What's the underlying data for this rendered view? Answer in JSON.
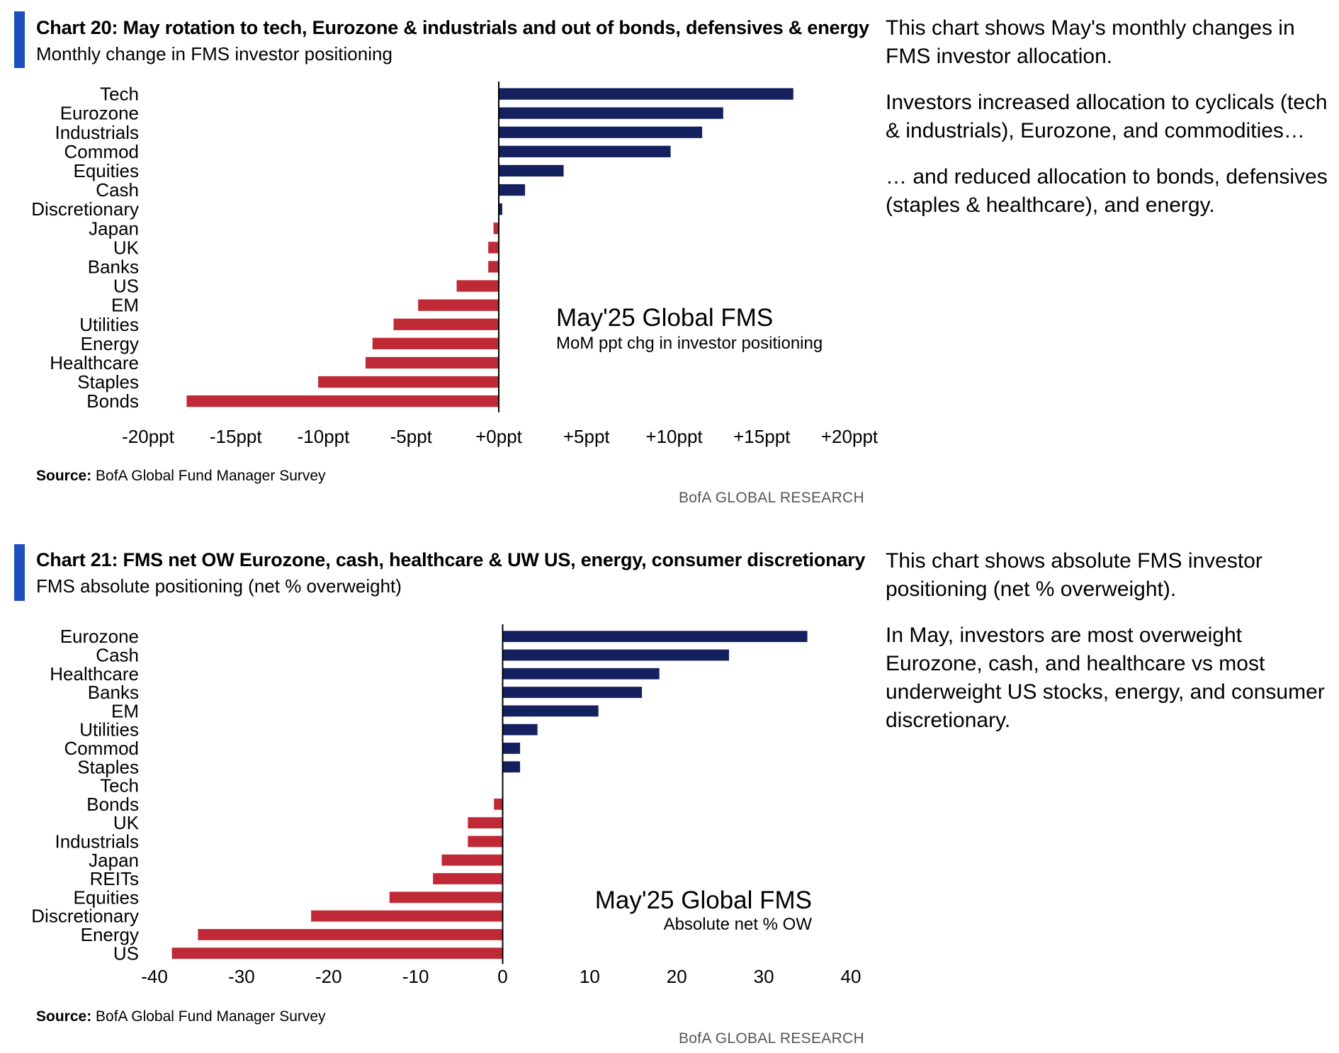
{
  "charts": [
    {
      "title": "Chart 20: May rotation to tech, Eurozone & industrials and out of bonds, defensives & energy",
      "subtitle": "Monthly change in FMS investor positioning",
      "annotation_title": "May'25 Global FMS",
      "annotation_subtitle": "MoM ppt chg in investor positioning",
      "source_label": "Source:",
      "source_text": "BofA Global Fund Manager Survey",
      "brand": "BofA GLOBAL RESEARCH",
      "notes": [
        "This chart shows May's monthly changes in FMS investor allocation.",
        "Investors increased allocation to cyclicals (tech & industrials), Eurozone, and commodities…",
        "… and reduced allocation to bonds, defensives (staples & healthcare), and energy."
      ]
    },
    {
      "title": "Chart 21: FMS net OW Eurozone, cash, healthcare & UW US, energy, consumer discretionary",
      "subtitle": "FMS absolute positioning (net % overweight)",
      "annotation_title": "May'25 Global FMS",
      "annotation_subtitle": "Absolute net % OW",
      "source_label": "Source:",
      "source_text": "BofA Global Fund Manager Survey",
      "brand": "BofA GLOBAL RESEARCH",
      "notes": [
        "This chart shows absolute FMS investor positioning (net % overweight).",
        "In May, investors are most overweight Eurozone, cash, and healthcare vs most underweight US stocks, energy, and consumer discretionary."
      ]
    }
  ],
  "colors": {
    "positive": "#14215e",
    "negative": "#bf2a36",
    "accent": "#1f4fbf"
  },
  "chart_data": [
    {
      "type": "bar",
      "orientation": "horizontal",
      "title": "Chart 20: May rotation to tech, Eurozone & industrials and out of bonds, defensives & energy",
      "categories": [
        "Tech",
        "Eurozone",
        "Industrials",
        "Commod",
        "Equities",
        "Cash",
        "Discretionary",
        "Japan",
        "UK",
        "Banks",
        "US",
        "EM",
        "Utilities",
        "Energy",
        "Healthcare",
        "Staples",
        "Bonds"
      ],
      "values": [
        16.8,
        12.8,
        11.6,
        9.8,
        3.7,
        1.5,
        0.2,
        -0.3,
        -0.6,
        -0.6,
        -2.4,
        -4.6,
        -6.0,
        -7.2,
        -7.6,
        -10.3,
        -17.8
      ],
      "xlim": [
        -20,
        20
      ],
      "xticks": [
        -20,
        -15,
        -10,
        -5,
        0,
        5,
        10,
        15,
        20
      ],
      "xtick_labels": [
        "-20ppt",
        "-15ppt",
        "-10ppt",
        "-5ppt",
        "+0ppt",
        "+5ppt",
        "+10ppt",
        "+15ppt",
        "+20ppt"
      ],
      "grid": false,
      "legend": "none"
    },
    {
      "type": "bar",
      "orientation": "horizontal",
      "title": "Chart 21: FMS net OW Eurozone, cash, healthcare & UW US, energy, consumer discretionary",
      "categories": [
        "Eurozone",
        "Cash",
        "Healthcare",
        "Banks",
        "EM",
        "Utilities",
        "Commod",
        "Staples",
        "Tech",
        "Bonds",
        "UK",
        "Industrials",
        "Japan",
        "REITs",
        "Equities",
        "Discretionary",
        "Energy",
        "US"
      ],
      "values": [
        35,
        26,
        18,
        16,
        11,
        4,
        2,
        2,
        0,
        -1,
        -4,
        -4,
        -7,
        -8,
        -13,
        -22,
        -35,
        -38
      ],
      "xlim": [
        -40,
        40
      ],
      "xticks": [
        -40,
        -30,
        -20,
        -10,
        0,
        10,
        20,
        30,
        40
      ],
      "xtick_labels": [
        "-40",
        "-30",
        "-20",
        "-10",
        "0",
        "10",
        "20",
        "30",
        "40"
      ],
      "grid": false,
      "legend": "none"
    }
  ]
}
